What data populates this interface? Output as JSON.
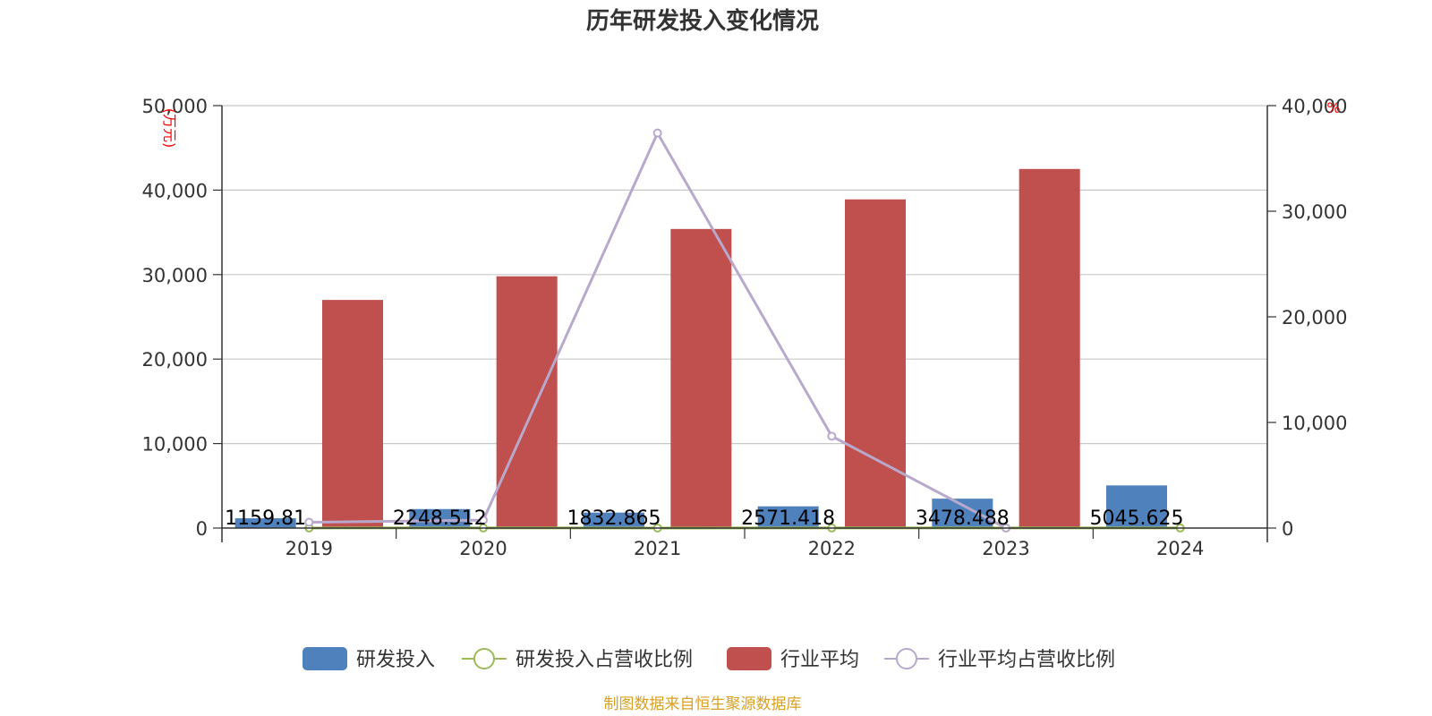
{
  "chart_data": {
    "type": "bar",
    "title": "历年研发投入变化情况",
    "categories": [
      "2019",
      "2020",
      "2021",
      "2022",
      "2023",
      "2024"
    ],
    "y_left": {
      "unit": "(万元)",
      "ylim": [
        0,
        50000
      ],
      "ticks": [
        "0",
        "10,000",
        "20,000",
        "30,000",
        "40,000",
        "50,000"
      ]
    },
    "y_right": {
      "unit": "%",
      "ylim": [
        0,
        40000
      ],
      "ticks": [
        "0",
        "10,000",
        "20,000",
        "30,000",
        "40,000"
      ]
    },
    "series": [
      {
        "name": "研发投入",
        "kind": "bar",
        "axis": "left",
        "color": "#4f81bd",
        "values": [
          1159.81,
          2248.512,
          1832.865,
          2571.418,
          3478.488,
          5045.625
        ],
        "labels": [
          "1159.81",
          "2248.512",
          "1832.865",
          "2571.418",
          "3478.488",
          "5045.625"
        ]
      },
      {
        "name": "研发投入占营收比例",
        "kind": "line",
        "axis": "right",
        "color": "#9bbb59",
        "values": [
          5.2,
          6.8,
          4.9,
          5.6,
          6.1,
          7.3
        ]
      },
      {
        "name": "行业平均",
        "kind": "bar",
        "axis": "left",
        "color": "#c0504d",
        "values": [
          27000,
          29800,
          35400,
          38900,
          42500,
          null
        ]
      },
      {
        "name": "行业平均占营收比例",
        "kind": "line",
        "axis": "right",
        "color": "#b8a9cc",
        "values": [
          550,
          750,
          37400,
          8700,
          0,
          null
        ]
      }
    ],
    "grid": true,
    "legend_position": "bottom"
  },
  "source": "制图数据来自恒生聚源数据库"
}
